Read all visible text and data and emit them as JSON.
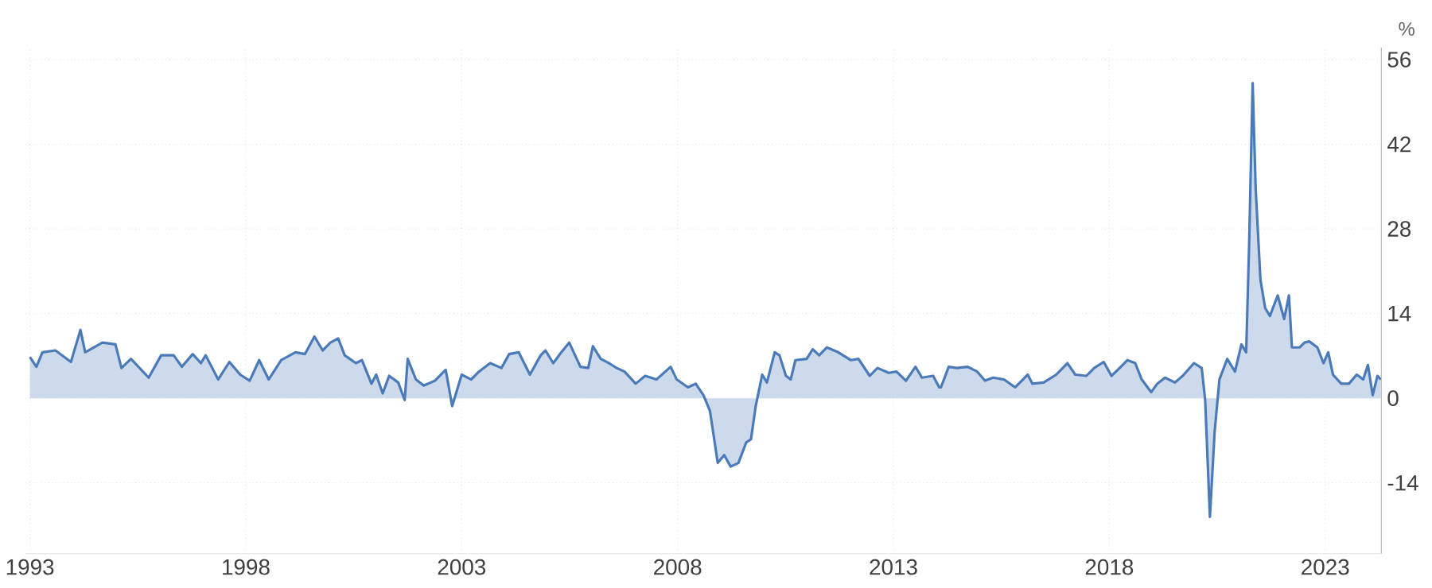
{
  "chart_data": {
    "type": "area",
    "ylabel": "%",
    "color": "#4a7ab8",
    "grid": true,
    "xlim": [
      1992.9,
      2024.3
    ],
    "xticks": [
      1993,
      1998,
      2003,
      2008,
      2013,
      2018,
      2023
    ],
    "ylim": [
      -25.7,
      58
    ],
    "yticks": [
      -14,
      0,
      14,
      28,
      42,
      56
    ],
    "x": [
      1993.0,
      1993.15,
      1993.29,
      1993.59,
      1993.95,
      1994.17,
      1994.28,
      1994.68,
      1994.98,
      1995.12,
      1995.34,
      1995.75,
      1996.04,
      1996.33,
      1996.52,
      1996.77,
      1996.96,
      1997.07,
      1997.36,
      1997.62,
      1997.87,
      1998.09,
      1998.31,
      1998.53,
      1998.82,
      1999.15,
      1999.37,
      1999.59,
      1999.78,
      1999.96,
      2000.14,
      2000.29,
      2000.55,
      2000.69,
      2000.91,
      2001.02,
      2001.17,
      2001.32,
      2001.53,
      2001.68,
      2001.75,
      2001.94,
      2002.12,
      2002.38,
      2002.63,
      2002.78,
      2003.0,
      2003.22,
      2003.4,
      2003.66,
      2003.92,
      2004.1,
      2004.32,
      2004.58,
      2004.83,
      2004.94,
      2005.12,
      2005.31,
      2005.49,
      2005.75,
      2005.93,
      2006.04,
      2006.22,
      2006.41,
      2006.59,
      2006.77,
      2007.03,
      2007.25,
      2007.51,
      2007.84,
      2007.98,
      2008.24,
      2008.42,
      2008.6,
      2008.75,
      2008.86,
      2008.93,
      2009.08,
      2009.23,
      2009.41,
      2009.59,
      2009.7,
      2009.81,
      2009.96,
      2010.07,
      2010.25,
      2010.36,
      2010.51,
      2010.62,
      2010.73,
      2010.99,
      2011.13,
      2011.28,
      2011.46,
      2011.72,
      2012.01,
      2012.19,
      2012.45,
      2012.63,
      2012.89,
      2013.07,
      2013.29,
      2013.51,
      2013.66,
      2013.92,
      2014.06,
      2014.1,
      2014.28,
      2014.47,
      2014.72,
      2014.94,
      2015.12,
      2015.31,
      2015.56,
      2015.82,
      2016.0,
      2016.11,
      2016.22,
      2016.48,
      2016.77,
      2017.03,
      2017.21,
      2017.47,
      2017.65,
      2017.87,
      2018.05,
      2018.24,
      2018.42,
      2018.6,
      2018.75,
      2018.97,
      2019.11,
      2019.29,
      2019.52,
      2019.7,
      2019.96,
      2020.14,
      2020.22,
      2020.33,
      2020.44,
      2020.55,
      2020.73,
      2020.91,
      2021.06,
      2021.17,
      2021.24,
      2021.32,
      2021.39,
      2021.5,
      2021.61,
      2021.72,
      2021.9,
      2022.05,
      2022.16,
      2022.23,
      2022.41,
      2022.52,
      2022.63,
      2022.82,
      2022.96,
      2023.07,
      2023.18,
      2023.37,
      2023.55,
      2023.73,
      2023.88,
      2023.99,
      2024.1,
      2024.21,
      2024.29
    ],
    "values": [
      6.8,
      5.2,
      7.6,
      7.9,
      6.0,
      11.3,
      7.6,
      9.2,
      8.9,
      5.0,
      6.5,
      3.4,
      7.1,
      7.1,
      5.2,
      7.3,
      5.8,
      7.1,
      3.1,
      6.0,
      3.9,
      2.9,
      6.3,
      3.1,
      6.3,
      7.6,
      7.3,
      10.2,
      7.9,
      9.2,
      9.9,
      7.1,
      5.8,
      6.3,
      2.4,
      3.9,
      0.8,
      3.7,
      2.6,
      -0.3,
      6.5,
      3.1,
      2.1,
      2.9,
      4.7,
      -1.3,
      3.9,
      3.1,
      4.4,
      5.8,
      5.0,
      7.3,
      7.6,
      3.9,
      7.1,
      7.9,
      5.8,
      7.6,
      9.2,
      5.2,
      5.0,
      8.6,
      6.5,
      5.8,
      5.0,
      4.4,
      2.4,
      3.7,
      3.1,
      5.2,
      3.1,
      1.8,
      2.4,
      0.5,
      -2.1,
      -7.3,
      -10.7,
      -9.4,
      -11.3,
      -10.7,
      -7.3,
      -6.8,
      -1.3,
      3.9,
      2.6,
      7.6,
      7.1,
      3.7,
      3.1,
      6.3,
      6.5,
      8.1,
      7.1,
      8.4,
      7.6,
      6.3,
      6.5,
      3.7,
      5.0,
      4.2,
      4.4,
      2.9,
      5.2,
      3.4,
      3.7,
      1.8,
      1.8,
      5.2,
      5.0,
      5.2,
      4.4,
      2.9,
      3.4,
      3.1,
      1.8,
      3.1,
      3.9,
      2.4,
      2.6,
      3.9,
      5.8,
      3.9,
      3.7,
      5.0,
      6.0,
      3.7,
      5.0,
      6.3,
      5.8,
      3.1,
      1.0,
      2.4,
      3.4,
      2.6,
      3.7,
      5.8,
      5.0,
      -0.3,
      -19.6,
      -5.5,
      3.1,
      6.5,
      4.4,
      8.9,
      7.6,
      25.9,
      52.1,
      34.6,
      19.6,
      14.9,
      13.6,
      17.0,
      13.1,
      17.0,
      8.4,
      8.4,
      9.2,
      9.4,
      8.4,
      5.8,
      7.6,
      3.9,
      2.4,
      2.4,
      3.9,
      3.1,
      5.5,
      0.5,
      3.7,
      3.1
    ]
  }
}
